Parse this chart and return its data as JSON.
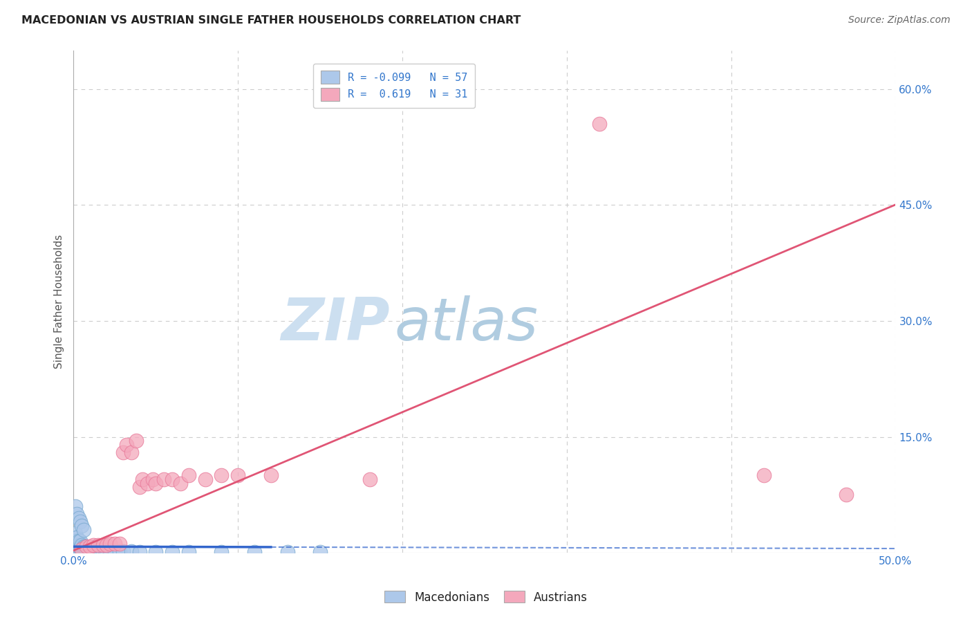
{
  "title": "MACEDONIAN VS AUSTRIAN SINGLE FATHER HOUSEHOLDS CORRELATION CHART",
  "source": "Source: ZipAtlas.com",
  "ylabel": "Single Father Households",
  "xlim": [
    0,
    0.5
  ],
  "ylim": [
    0,
    0.65
  ],
  "ytick_labels": [
    "15.0%",
    "30.0%",
    "45.0%",
    "60.0%"
  ],
  "ytick_positions": [
    0.15,
    0.3,
    0.45,
    0.6
  ],
  "mac_R": -0.099,
  "mac_N": 57,
  "aus_R": 0.619,
  "aus_N": 31,
  "mac_color": "#adc8ea",
  "aus_color": "#f4a8bc",
  "mac_edge_color": "#7aaad0",
  "aus_edge_color": "#e87a9a",
  "mac_line_color": "#3366cc",
  "aus_line_color": "#e05575",
  "background_color": "#ffffff",
  "watermark_zip": "ZIP",
  "watermark_atlas": "atlas",
  "watermark_color_zip": "#ccdff0",
  "watermark_color_atlas": "#b0cce0",
  "mac_line_solid_end": 0.12,
  "mac_slope": -0.005,
  "mac_intercept": 0.008,
  "aus_slope": 0.895,
  "aus_intercept": 0.003,
  "mac_x": [
    0.001,
    0.001,
    0.001,
    0.001,
    0.001,
    0.002,
    0.002,
    0.002,
    0.002,
    0.003,
    0.003,
    0.003,
    0.004,
    0.004,
    0.004,
    0.005,
    0.005,
    0.005,
    0.006,
    0.006,
    0.007,
    0.007,
    0.008,
    0.008,
    0.009,
    0.009,
    0.01,
    0.01,
    0.011,
    0.012,
    0.013,
    0.014,
    0.015,
    0.016,
    0.017,
    0.018,
    0.019,
    0.02,
    0.022,
    0.025,
    0.028,
    0.03,
    0.035,
    0.04,
    0.05,
    0.06,
    0.07,
    0.09,
    0.11,
    0.13,
    0.15,
    0.001,
    0.002,
    0.003,
    0.004,
    0.005,
    0.006
  ],
  "mac_y": [
    0.008,
    0.01,
    0.015,
    0.02,
    0.025,
    0.008,
    0.01,
    0.015,
    0.02,
    0.008,
    0.01,
    0.015,
    0.008,
    0.01,
    0.015,
    0.006,
    0.008,
    0.01,
    0.006,
    0.008,
    0.006,
    0.008,
    0.005,
    0.008,
    0.005,
    0.007,
    0.005,
    0.007,
    0.005,
    0.005,
    0.005,
    0.005,
    0.004,
    0.004,
    0.004,
    0.003,
    0.003,
    0.003,
    0.003,
    0.002,
    0.002,
    0.002,
    0.002,
    0.001,
    0.001,
    0.001,
    0.001,
    0.001,
    0.001,
    0.001,
    0.001,
    0.06,
    0.05,
    0.045,
    0.04,
    0.035,
    0.03
  ],
  "aus_x": [
    0.005,
    0.008,
    0.01,
    0.012,
    0.015,
    0.018,
    0.02,
    0.022,
    0.025,
    0.028,
    0.03,
    0.032,
    0.035,
    0.038,
    0.04,
    0.042,
    0.045,
    0.048,
    0.05,
    0.055,
    0.06,
    0.065,
    0.07,
    0.08,
    0.09,
    0.1,
    0.12,
    0.18,
    0.32,
    0.42,
    0.47
  ],
  "aus_y": [
    0.005,
    0.008,
    0.008,
    0.01,
    0.01,
    0.01,
    0.01,
    0.012,
    0.012,
    0.012,
    0.13,
    0.14,
    0.13,
    0.145,
    0.085,
    0.095,
    0.09,
    0.095,
    0.09,
    0.095,
    0.095,
    0.09,
    0.1,
    0.095,
    0.1,
    0.1,
    0.1,
    0.095,
    0.555,
    0.1,
    0.075
  ]
}
